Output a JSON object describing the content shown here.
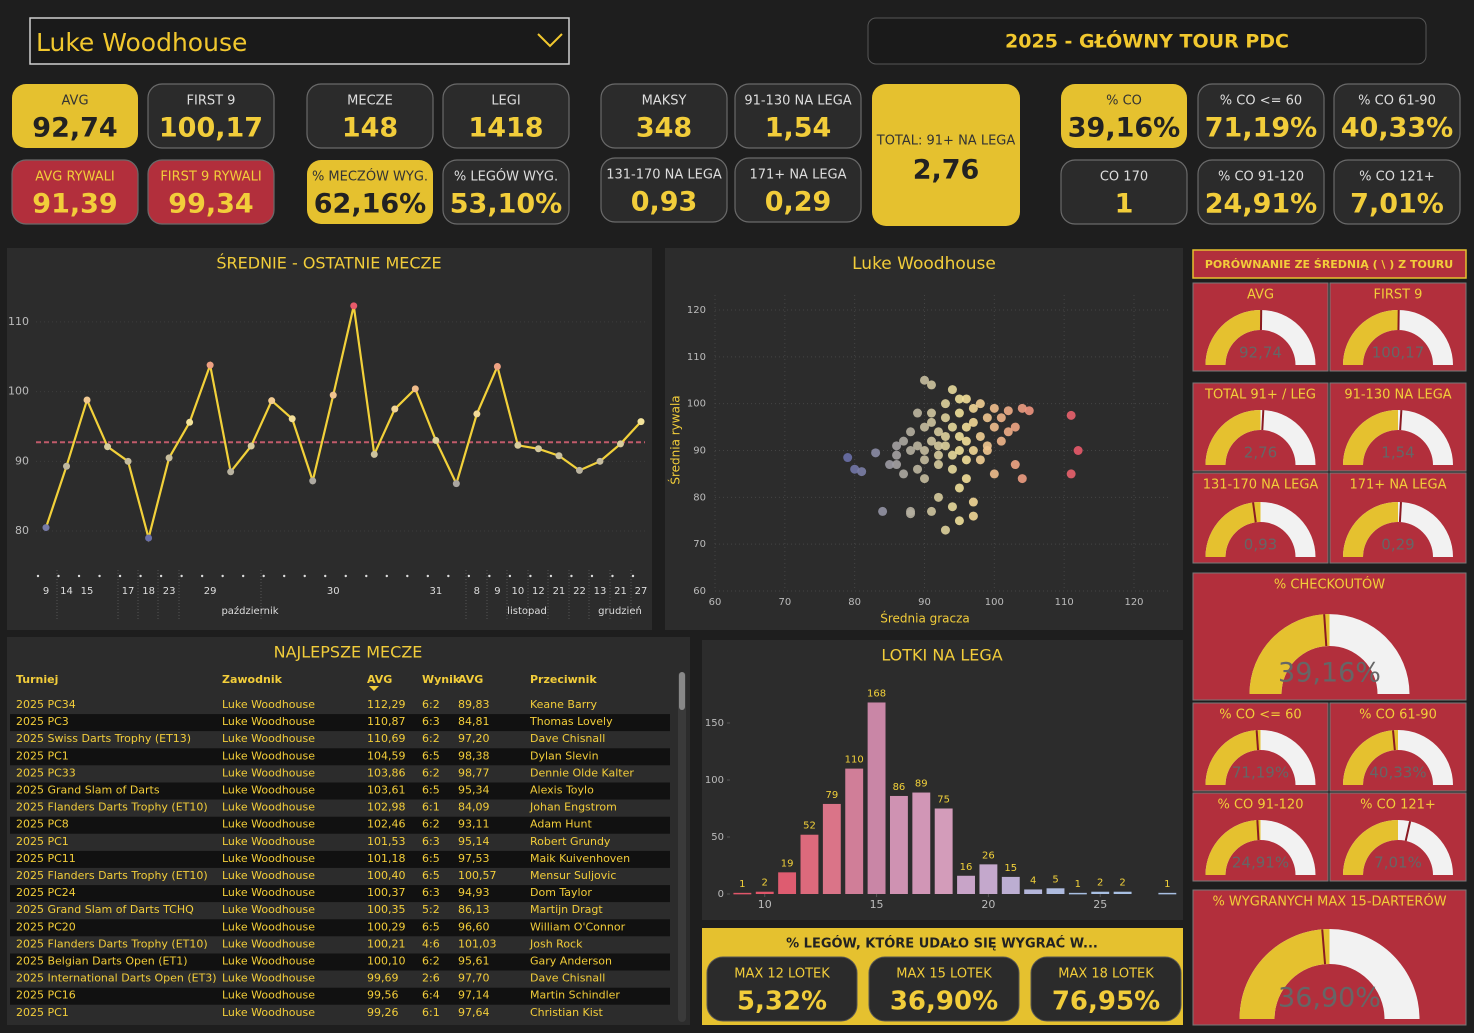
{
  "header": {
    "player": "Luke Woodhouse",
    "title": "2025 - GŁÓWNY TOUR PDC"
  },
  "kpis": [
    {
      "label": "AVG",
      "value": "92,74",
      "style": "yellow"
    },
    {
      "label": "FIRST 9",
      "value": "100,17",
      "style": "dark"
    },
    {
      "label": "AVG RYWALI",
      "value": "91,39",
      "style": "red"
    },
    {
      "label": "FIRST 9 RYWALI",
      "value": "99,34",
      "style": "red"
    },
    {
      "label": "MECZE",
      "value": "148",
      "style": "dark"
    },
    {
      "label": "LEGI",
      "value": "1418",
      "style": "dark"
    },
    {
      "label": "% MECZÓW WYG.",
      "value": "62,16%",
      "style": "yellow"
    },
    {
      "label": "% LEGÓW WYG.",
      "value": "53,10%",
      "style": "dark"
    },
    {
      "label": "MAKSY",
      "value": "348",
      "style": "dark"
    },
    {
      "label": "91-130 NA LEGA",
      "value": "1,54",
      "style": "dark"
    },
    {
      "label": "131-170 NA LEGA",
      "value": "0,93",
      "style": "dark"
    },
    {
      "label": "171+ NA LEGA",
      "value": "0,29",
      "style": "dark"
    },
    {
      "label": "TOTAL: 91+ NA LEGA",
      "value": "2,76",
      "style": "yellow"
    },
    {
      "label": "% CO",
      "value": "39,16%",
      "style": "yellow"
    },
    {
      "label": "% CO <= 60",
      "value": "71,19%",
      "style": "dark"
    },
    {
      "label": "% CO 61-90",
      "value": "40,33%",
      "style": "dark"
    },
    {
      "label": "CO 170",
      "value": "1",
      "style": "dark"
    },
    {
      "label": "% CO 91-120",
      "value": "24,91%",
      "style": "dark"
    },
    {
      "label": "% CO 121+",
      "value": "7,01%",
      "style": "dark"
    }
  ],
  "chart_data": [
    {
      "type": "line",
      "title": "ŚREDNIE - OSTATNIE MECZE",
      "categories": [
        "9",
        "14",
        "15",
        null,
        "17",
        "18",
        "23",
        null,
        "29",
        null,
        null,
        null,
        null,
        null,
        "30",
        null,
        null,
        null,
        null,
        "31",
        null,
        "8",
        "9",
        "10",
        "12",
        "21",
        "22",
        "13",
        "21",
        "27"
      ],
      "x_groups": [
        "październik",
        "listopad",
        "grudzień"
      ],
      "values": [
        80.5,
        89.3,
        98.8,
        92.1,
        90,
        79,
        90.5,
        95.6,
        103.8,
        88.5,
        92.2,
        98.7,
        96.1,
        87.2,
        99.5,
        112.3,
        91,
        97.5,
        100.4,
        93,
        86.8,
        96.8,
        103.6,
        92.3,
        91.8,
        90.8,
        88.7,
        90,
        92.5,
        95.7
      ],
      "average_line": 92.74,
      "color": "#f2d13a",
      "average_color": "#c05a6a",
      "color_scale": [
        "#6a70a8",
        "#f3e39a",
        "#e85a6a"
      ],
      "ylim": [
        78,
        114
      ],
      "yticks": [
        80,
        90,
        100,
        110
      ],
      "grid": true
    },
    {
      "type": "scatter",
      "title": "Luke Woodhouse",
      "xlabel": "Średnia gracza",
      "ylabel": "Średnia rywala",
      "x": [
        79,
        80,
        81,
        83,
        84,
        86,
        86,
        87,
        88,
        88,
        90,
        91,
        94,
        96,
        98,
        100,
        102,
        104,
        105,
        111,
        112,
        111,
        103,
        104,
        100,
        96,
        97,
        95,
        94,
        95,
        97,
        93,
        92,
        91,
        90,
        89,
        90,
        91,
        92,
        93,
        94,
        95,
        96,
        97,
        98,
        99,
        100,
        101,
        102,
        99,
        97,
        95,
        93,
        91,
        89,
        88,
        87,
        89,
        90,
        92,
        94,
        93,
        95,
        96,
        98,
        92,
        91,
        93,
        95,
        94,
        92,
        90,
        88,
        86,
        85,
        99,
        101,
        103,
        97,
        96
      ],
      "y": [
        88.5,
        86,
        85.5,
        89.5,
        77,
        89,
        87,
        85,
        77,
        76.5,
        105,
        104,
        103,
        101,
        100,
        99,
        98.5,
        99,
        98.5,
        97.5,
        90,
        85,
        87,
        84,
        85,
        84,
        79,
        82,
        78,
        75,
        76,
        73,
        80,
        77,
        84,
        86,
        90,
        92,
        94,
        91,
        89,
        93,
        95,
        96,
        93,
        91,
        95,
        92,
        94,
        97,
        99,
        98,
        97,
        96,
        98,
        94,
        92,
        91,
        88,
        87,
        86,
        93,
        90,
        88,
        88,
        89,
        98,
        100,
        101,
        95,
        91,
        95,
        90,
        91,
        87,
        90,
        97,
        95,
        90,
        92
      ],
      "color_scale": [
        "#6a70a8",
        "#f3e39a",
        "#e85a6a"
      ],
      "xlim": [
        60,
        125
      ],
      "ylim": [
        60,
        125
      ],
      "xticks": [
        60,
        70,
        80,
        90,
        100,
        110,
        120
      ],
      "yticks": [
        60,
        70,
        80,
        90,
        100,
        110,
        120
      ],
      "grid": true
    },
    {
      "type": "bar",
      "title": "LOTKI NA LEGA",
      "x": [
        9,
        10,
        11,
        12,
        13,
        14,
        15,
        16,
        17,
        18,
        19,
        20,
        21,
        22,
        23,
        24,
        25,
        26,
        28
      ],
      "values": [
        1,
        2,
        19,
        52,
        79,
        110,
        168,
        86,
        89,
        75,
        16,
        26,
        15,
        4,
        5,
        1,
        2,
        2,
        1
      ],
      "colors": [
        "#e0566a",
        "#e0566a",
        "#de5c70",
        "#dc6a7c",
        "#da7488",
        "#d07e98",
        "#c986a6",
        "#cf92b2",
        "#d196b6",
        "#d39cba",
        "#c8a4c8",
        "#c4a8cc",
        "#bcaed2",
        "#b4b6da",
        "#aebbdf",
        "#a8bfe2",
        "#a8bfe2",
        "#a8bfe2",
        "#a8bfe2"
      ],
      "label_color": "#f2d13a",
      "xlim": [
        8,
        28.7
      ],
      "ylim": [
        0,
        180
      ],
      "xticks": [
        10,
        15,
        20,
        25
      ],
      "yticks": [
        0,
        50,
        100,
        150
      ]
    },
    {
      "type": "gauge",
      "title": "AVG",
      "value": 92.74,
      "value_label": "92,74",
      "target": 93.5
    },
    {
      "type": "gauge",
      "title": "FIRST 9",
      "value": 100.17,
      "value_label": "100,17",
      "target": 101
    },
    {
      "type": "gauge",
      "title": "TOTAL 91+ / LEG",
      "value": 2.76,
      "value_label": "2,76",
      "target": 2.85
    },
    {
      "type": "gauge",
      "title": "91-130 NA LEGA",
      "value": 1.54,
      "value_label": "1,54",
      "target": 1.6
    },
    {
      "type": "gauge",
      "title": "131-170 NA LEGA",
      "value": 0.93,
      "value_label": "0,93",
      "target": 0.85
    },
    {
      "type": "gauge",
      "title": "171+ NA LEGA",
      "value": 0.29,
      "value_label": "0,29",
      "target": 0.3
    },
    {
      "type": "gauge",
      "title": "% CHECKOUTÓW",
      "value": 39.16,
      "value_label": "39,16%",
      "target": 37.5
    },
    {
      "type": "gauge",
      "title": "% CO <= 60",
      "value": 71.19,
      "value_label": "71,19%",
      "target": 68
    },
    {
      "type": "gauge",
      "title": "% CO 61-90",
      "value": 40.33,
      "value_label": "40,33%",
      "target": 38
    },
    {
      "type": "gauge",
      "title": "% CO 91-120",
      "value": 24.91,
      "value_label": "24,91%",
      "target": 24
    },
    {
      "type": "gauge",
      "title": "% CO 121+",
      "value": 7.01,
      "value_label": "7,01%",
      "target": 8
    },
    {
      "type": "gauge",
      "title": "% WYGRANYCH MAX 15-DARTERÓW",
      "value": 36.9,
      "value_label": "36,90%",
      "target": 35
    }
  ],
  "gauge_header": "PORÓWNANIE ZE ŚREDNIĄ ( \\ ) Z TOURU",
  "table": {
    "title": "NAJLEPSZE MECZE",
    "columns": [
      "Turniej",
      "Zawodnik",
      "AVG",
      "Wynik",
      "AVG",
      "Przeciwnik"
    ],
    "rows": [
      [
        "2025 PC34",
        "Luke Woodhouse",
        "112,29",
        "6:2",
        "89,83",
        "Keane Barry"
      ],
      [
        "2025 PC3",
        "Luke Woodhouse",
        "110,87",
        "6:3",
        "84,81",
        "Thomas Lovely"
      ],
      [
        "2025 Swiss Darts Trophy (ET13)",
        "Luke Woodhouse",
        "110,69",
        "6:2",
        "97,20",
        "Dave Chisnall"
      ],
      [
        "2025 PC1",
        "Luke Woodhouse",
        "104,59",
        "6:5",
        "98,38",
        "Dylan Slevin"
      ],
      [
        "2025 PC33",
        "Luke Woodhouse",
        "103,86",
        "6:2",
        "98,77",
        "Dennie Olde Kalter"
      ],
      [
        "2025 Grand Slam of Darts",
        "Luke Woodhouse",
        "103,61",
        "6:5",
        "95,34",
        "Alexis Toylo"
      ],
      [
        "2025 Flanders Darts Trophy (ET10)",
        "Luke Woodhouse",
        "102,98",
        "6:1",
        "84,09",
        "Johan Engstrom"
      ],
      [
        "2025 PC8",
        "Luke Woodhouse",
        "102,46",
        "6:2",
        "93,11",
        "Adam Hunt"
      ],
      [
        "2025 PC1",
        "Luke Woodhouse",
        "101,53",
        "6:3",
        "95,14",
        "Robert Grundy"
      ],
      [
        "2025 PC11",
        "Luke Woodhouse",
        "101,18",
        "6:5",
        "97,53",
        "Maik Kuivenhoven"
      ],
      [
        "2025 Flanders Darts Trophy (ET10)",
        "Luke Woodhouse",
        "100,40",
        "6:5",
        "100,57",
        "Mensur Suljovic"
      ],
      [
        "2025 PC24",
        "Luke Woodhouse",
        "100,37",
        "6:3",
        "94,93",
        "Dom Taylor"
      ],
      [
        "2025 Grand Slam of Darts TCHQ",
        "Luke Woodhouse",
        "100,35",
        "5:2",
        "86,13",
        "Martijn Dragt"
      ],
      [
        "2025 PC20",
        "Luke Woodhouse",
        "100,29",
        "6:5",
        "96,60",
        "William O'Connor"
      ],
      [
        "2025 Flanders Darts Trophy (ET10)",
        "Luke Woodhouse",
        "100,21",
        "4:6",
        "101,03",
        "Josh Rock"
      ],
      [
        "2025 Belgian Darts Open (ET1)",
        "Luke Woodhouse",
        "100,10",
        "6:2",
        "95,61",
        "Gary Anderson"
      ],
      [
        "2025 International Darts Open (ET3)",
        "Luke Woodhouse",
        "99,69",
        "2:6",
        "97,70",
        "Dave Chisnall"
      ],
      [
        "2025 PC16",
        "Luke Woodhouse",
        "99,56",
        "6:4",
        "97,14",
        "Martin Schindler"
      ],
      [
        "2025 PC1",
        "Luke Woodhouse",
        "99,26",
        "6:1",
        "97,64",
        "Christian Kist"
      ]
    ]
  },
  "win_panel": {
    "title": "% LEGÓW, KTÓRE UDAŁO SIĘ WYGRAĆ W...",
    "items": [
      {
        "label": "MAX 12 LOTEK",
        "value": "5,32%"
      },
      {
        "label": "MAX 15 LOTEK",
        "value": "36,90%"
      },
      {
        "label": "MAX 18 LOTEK",
        "value": "76,95%"
      }
    ]
  }
}
